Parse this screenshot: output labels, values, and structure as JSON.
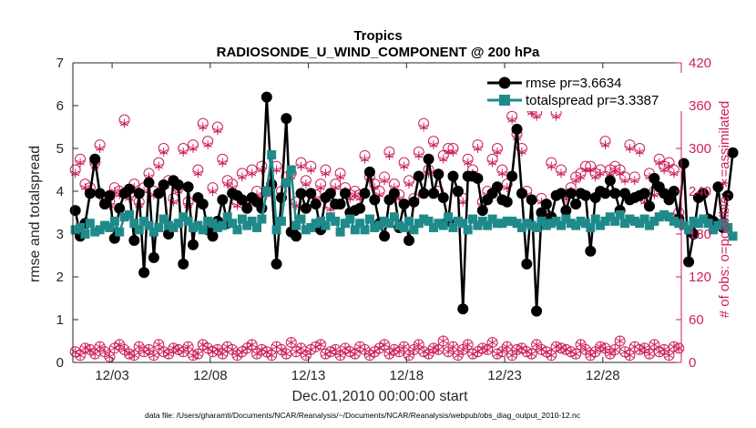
{
  "chart_data": {
    "type": "line",
    "title": "Tropics",
    "subtitle": "RADIOSONDE_U_WIND_COMPONENT @ 200 hPa",
    "xlabel": "Dec.01,2010 00:00:00 start",
    "ylabel": "rmse and totalspread",
    "ylabel_right": "# of obs: o=possible; ∗=assimilated",
    "footnote": "data file: /Users/gharamti/Documents/NCAR/Reanalysis/~/Documents/NCAR/Reanalysis/webpub/obs_diag_output_2010-12.nc",
    "xlim": [
      1,
      32
    ],
    "ylim": [
      0,
      7
    ],
    "ylim_right": [
      0,
      420
    ],
    "x_ticks": [
      3,
      8,
      13,
      18,
      23,
      28
    ],
    "x_tick_labels": [
      "12/03",
      "12/08",
      "12/13",
      "12/18",
      "12/23",
      "12/28"
    ],
    "y_ticks": [
      0,
      1,
      2,
      3,
      4,
      5,
      6,
      7
    ],
    "y_ticks_right": [
      0,
      60,
      120,
      180,
      240,
      300,
      360,
      420
    ],
    "x_start": 1.125,
    "x_step": 0.25,
    "series": [
      {
        "name": "rmse",
        "legend_label": "rmse pr=3.6634",
        "color": "#000000",
        "marker": "circle",
        "values": [
          3.55,
          2.95,
          3.25,
          3.95,
          4.75,
          3.95,
          3.7,
          3.9,
          2.9,
          3.6,
          3.95,
          4.05,
          2.85,
          3.95,
          2.1,
          4.2,
          2.45,
          3.95,
          4.15,
          3.0,
          4.25,
          4.15,
          2.3,
          4.1,
          2.75,
          3.85,
          3.7,
          3.1,
          2.95,
          3.3,
          3.8,
          3.25,
          3.95,
          3.9,
          3.8,
          3.6,
          3.85,
          3.75,
          3.6,
          6.2,
          4.15,
          2.3,
          3.85,
          5.7,
          3.05,
          2.95,
          3.95,
          3.6,
          3.95,
          3.7,
          3.1,
          3.85,
          3.95,
          3.7,
          3.7,
          3.95,
          3.5,
          3.55,
          3.6,
          3.95,
          4.45,
          3.8,
          3.25,
          2.95,
          3.8,
          3.95,
          3.15,
          3.7,
          2.85,
          3.75,
          4.35,
          3.95,
          4.75,
          3.95,
          4.4,
          3.85,
          3.3,
          4.35,
          4.0,
          1.25,
          4.35,
          4.35,
          4.3,
          3.55,
          3.8,
          3.95,
          4.1,
          3.8,
          3.75,
          4.35,
          5.45,
          3.95,
          2.3,
          3.8,
          1.2,
          3.5,
          3.7,
          3.4,
          3.9,
          3.95,
          3.55,
          3.95,
          3.7,
          3.95,
          3.9,
          2.6,
          3.85,
          4.0,
          3.95,
          4.25,
          3.95,
          3.55,
          3.95,
          3.8,
          3.85,
          3.9,
          3.95,
          3.65,
          4.3,
          4.1,
          3.95,
          3.8,
          4.0,
          3.35,
          4.65,
          2.35,
          3.0,
          3.85,
          3.95,
          3.35,
          3.3,
          4.1,
          3.15,
          3.9,
          4.9
        ]
      },
      {
        "name": "totalspread",
        "legend_label": "totalspread pr=3.3387",
        "color": "#1f8a8a",
        "marker": "square",
        "values": [
          3.1,
          3.15,
          3.0,
          3.25,
          3.05,
          3.1,
          3.2,
          3.15,
          3.3,
          3.05,
          3.4,
          3.45,
          3.25,
          3.1,
          3.3,
          3.2,
          3.05,
          3.15,
          3.35,
          3.2,
          3.15,
          3.25,
          3.4,
          3.3,
          3.15,
          3.2,
          3.1,
          3.3,
          3.25,
          3.15,
          3.2,
          3.4,
          3.25,
          3.1,
          3.35,
          3.2,
          3.3,
          3.15,
          3.35,
          4.0,
          4.85,
          3.1,
          3.3,
          4.2,
          4.5,
          3.2,
          3.35,
          3.1,
          3.15,
          3.25,
          3.3,
          3.2,
          3.4,
          3.3,
          3.05,
          3.25,
          3.35,
          3.1,
          3.25,
          3.1,
          3.35,
          3.15,
          3.2,
          3.3,
          3.25,
          3.4,
          3.2,
          3.15,
          3.3,
          3.1,
          3.25,
          3.35,
          3.3,
          3.15,
          3.25,
          3.2,
          3.4,
          3.15,
          3.3,
          3.25,
          3.1,
          3.35,
          3.2,
          3.3,
          3.2,
          3.35,
          3.25,
          3.25,
          3.3,
          3.3,
          3.25,
          3.15,
          3.25,
          3.2,
          3.15,
          3.3,
          3.2,
          3.25,
          3.3,
          3.2,
          3.35,
          3.25,
          3.2,
          3.3,
          3.25,
          3.15,
          3.35,
          3.2,
          3.3,
          3.4,
          3.3,
          3.45,
          3.25,
          3.35,
          3.3,
          3.25,
          3.35,
          3.2,
          3.3,
          3.4,
          3.45,
          3.4,
          3.3,
          3.25,
          3.2,
          3.1,
          3.3,
          3.25,
          3.35,
          3.25,
          3.1,
          3.2,
          3.25,
          3.15,
          2.95
        ]
      },
      {
        "name": "possible",
        "axis": "right",
        "color": "#cc1f5b",
        "marker": "circle-open",
        "values": [
          270,
          285,
          250,
          245,
          280,
          305,
          230,
          225,
          245,
          240,
          340,
          235,
          250,
          225,
          245,
          265,
          240,
          280,
          300,
          255,
          230,
          245,
          300,
          225,
          305,
          270,
          335,
          310,
          245,
          330,
          285,
          255,
          250,
          225,
          265,
          225,
          270,
          240,
          275,
          240,
          250,
          275,
          240,
          260,
          265,
          225,
          280,
          255,
          275,
          235,
          250,
          270,
          220,
          250,
          265,
          245,
          235,
          240,
          235,
          290,
          260,
          250,
          240,
          260,
          295,
          250,
          235,
          280,
          255,
          230,
          295,
          335,
          270,
          310,
          240,
          290,
          300,
          300,
          240,
          230,
          285,
          270,
          305,
          225,
          240,
          285,
          300,
          270,
          250,
          345,
          320,
          300,
          240,
          355,
          350,
          230,
          205,
          280,
          350,
          270,
          235,
          245,
          260,
          265,
          275,
          275,
          265,
          270,
          310,
          270,
          275,
          270,
          260,
          305,
          260,
          300,
          230,
          265,
          240,
          285,
          275,
          280,
          270,
          210,
          250,
          235,
          275,
          290,
          265,
          260,
          305,
          285,
          250,
          245,
          305,
          255
        ]
      },
      {
        "name": "assimilated",
        "axis": "right",
        "color": "#cc1f5b",
        "marker": "asterisk",
        "values": [
          265,
          280,
          245,
          240,
          275,
          300,
          225,
          220,
          240,
          235,
          335,
          230,
          245,
          220,
          240,
          260,
          235,
          275,
          295,
          250,
          225,
          240,
          295,
          220,
          300,
          265,
          330,
          305,
          240,
          325,
          280,
          250,
          245,
          220,
          260,
          220,
          265,
          235,
          270,
          235,
          245,
          270,
          235,
          255,
          260,
          220,
          275,
          250,
          270,
          230,
          245,
          265,
          215,
          245,
          260,
          240,
          230,
          235,
          230,
          285,
          255,
          245,
          235,
          255,
          290,
          245,
          230,
          275,
          250,
          225,
          290,
          330,
          265,
          305,
          235,
          285,
          295,
          295,
          235,
          225,
          280,
          265,
          300,
          220,
          235,
          280,
          295,
          265,
          245,
          340,
          315,
          295,
          235,
          350,
          345,
          225,
          200,
          275,
          345,
          265,
          230,
          240,
          255,
          260,
          270,
          270,
          260,
          265,
          305,
          265,
          270,
          265,
          255,
          300,
          255,
          295,
          225,
          260,
          235,
          280,
          270,
          275,
          265,
          205,
          245,
          230,
          270,
          285,
          260,
          255,
          300,
          280,
          245,
          240,
          300,
          250
        ]
      },
      {
        "name": "possible_bottom",
        "axis": "right",
        "color": "#cc1f5b",
        "marker": "circle-open",
        "values": [
          15,
          10,
          20,
          18,
          12,
          22,
          15,
          8,
          20,
          25,
          18,
          12,
          10,
          22,
          15,
          18,
          10,
          25,
          15,
          12,
          20,
          18,
          15,
          22,
          10,
          12,
          25,
          20,
          15,
          18,
          12,
          22,
          18,
          10,
          15,
          20,
          25,
          12,
          18,
          15,
          10,
          22,
          18,
          12,
          28,
          15,
          20,
          10,
          18,
          22,
          25,
          12,
          15,
          18,
          10,
          20,
          15,
          12,
          22,
          18,
          10,
          15,
          20,
          25,
          12,
          18,
          15,
          22,
          10,
          18,
          25,
          15,
          12,
          20,
          18,
          30,
          15,
          22,
          10,
          18,
          25,
          12,
          15,
          20,
          18,
          28,
          12,
          15,
          22,
          10,
          18,
          20,
          15,
          12,
          25,
          18,
          15,
          10,
          22,
          20,
          18,
          15,
          12,
          25,
          18,
          10,
          15,
          22,
          20,
          12,
          18,
          30,
          15,
          10,
          22,
          18,
          20,
          12,
          25,
          15,
          18,
          10,
          22,
          20,
          15,
          12,
          25,
          18,
          15,
          20,
          22,
          18,
          12,
          10,
          15,
          2
        ]
      },
      {
        "name": "assimilated_bottom",
        "axis": "right",
        "color": "#cc1f5b",
        "marker": "asterisk",
        "values": [
          15,
          10,
          20,
          18,
          12,
          22,
          15,
          8,
          20,
          25,
          18,
          12,
          10,
          22,
          15,
          18,
          10,
          25,
          15,
          12,
          20,
          18,
          15,
          22,
          10,
          12,
          25,
          20,
          15,
          18,
          12,
          22,
          18,
          10,
          15,
          20,
          25,
          12,
          18,
          15,
          10,
          22,
          18,
          12,
          28,
          15,
          20,
          10,
          18,
          22,
          25,
          12,
          15,
          18,
          10,
          20,
          15,
          12,
          22,
          18,
          10,
          15,
          20,
          25,
          12,
          18,
          15,
          22,
          10,
          18,
          25,
          15,
          12,
          20,
          18,
          30,
          15,
          22,
          10,
          18,
          25,
          12,
          15,
          20,
          18,
          28,
          12,
          15,
          22,
          10,
          18,
          20,
          15,
          12,
          25,
          18,
          15,
          10,
          22,
          20,
          18,
          15,
          12,
          25,
          18,
          10,
          15,
          22,
          20,
          12,
          18,
          30,
          15,
          10,
          22,
          18,
          20,
          12,
          25,
          15,
          18,
          10,
          22,
          20,
          15,
          12,
          25,
          18,
          15,
          20,
          22,
          18,
          12,
          10,
          15,
          2
        ]
      }
    ]
  }
}
